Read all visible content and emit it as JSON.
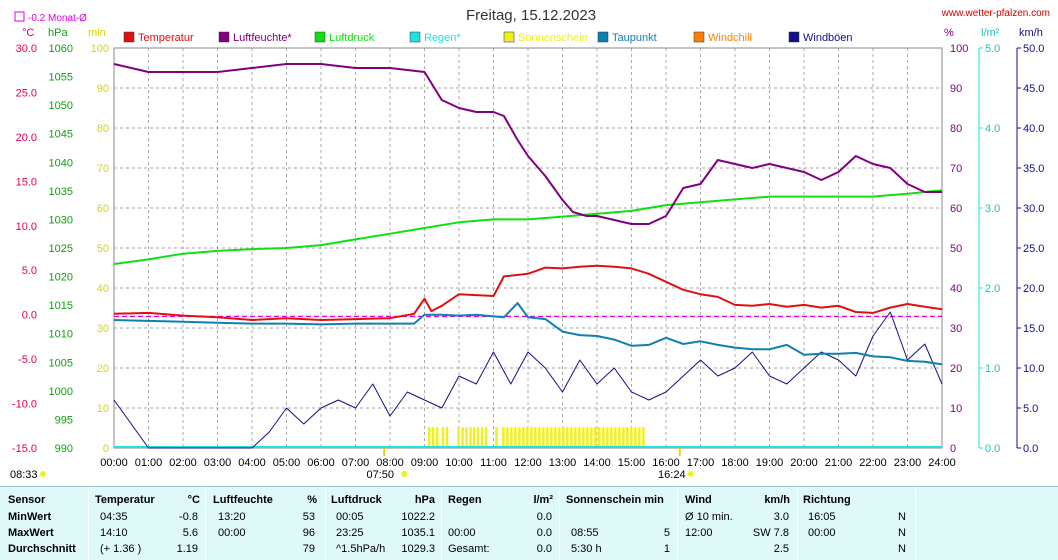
{
  "chart_data": {
    "type": "line",
    "title": "Freitag, 15.12.2023",
    "source": "www.wetter-pfalzen.com",
    "month_mean_label": "-0.2 Monat-Ø",
    "x_ticks": [
      "00:00",
      "01:00",
      "02:00",
      "03:00",
      "04:00",
      "05:00",
      "06:00",
      "07:00",
      "08:00",
      "09:00",
      "10:00",
      "11:00",
      "12:00",
      "13:00",
      "14:00",
      "15:00",
      "16:00",
      "17:00",
      "18:00",
      "19:00",
      "20:00",
      "21:00",
      "22:00",
      "23:00",
      "24:00"
    ],
    "sunrise": "07:50",
    "sunset": "16:24",
    "sunshine_start": "08:33",
    "axes": {
      "temp": {
        "unit": "°C",
        "min": -15,
        "max": 30,
        "ticks": [
          "30.0",
          "25.0",
          "20.0",
          "15.0",
          "10.0",
          "5.0",
          "0.0",
          "-5.0",
          "-10.0",
          "-15.0"
        ]
      },
      "pressure": {
        "unit": "hPa",
        "min": 990,
        "max": 1060,
        "ticks": [
          "1060",
          "1055",
          "1050",
          "1045",
          "1040",
          "1035",
          "1030",
          "1025",
          "1020",
          "1015",
          "1010",
          "1005",
          "1000",
          "995",
          "990"
        ]
      },
      "sun": {
        "unit": "min",
        "ticks": [
          "100",
          "90",
          "80",
          "70",
          "60",
          "50",
          "40",
          "30",
          "20",
          "10",
          "0"
        ]
      },
      "humidity": {
        "unit": "%",
        "ticks": [
          "100",
          "90",
          "80",
          "70",
          "60",
          "50",
          "40",
          "30",
          "20",
          "10",
          "0"
        ]
      },
      "rain": {
        "unit": "l/m²",
        "ticks": [
          "5.0",
          "4.0",
          "3.0",
          "2.0",
          "1.0",
          "0.0"
        ]
      },
      "wind": {
        "unit": "km/h",
        "ticks": [
          "50.0",
          "45.0",
          "40.0",
          "35.0",
          "30.0",
          "25.0",
          "20.0",
          "15.0",
          "10.0",
          "5.0",
          "0.0"
        ]
      }
    },
    "month_mean_temp": -0.2,
    "legend": [
      {
        "name": "Temperatur",
        "color": "#e01010"
      },
      {
        "name": "Luftfeuchte*",
        "color": "#800080"
      },
      {
        "name": "Luftdruck",
        "color": "#10e010"
      },
      {
        "name": "Regen*",
        "color": "#20e0e0"
      },
      {
        "name": "Sonnenschein",
        "color": "#f0f020"
      },
      {
        "name": "Taupunkt",
        "color": "#1080b0"
      },
      {
        "name": "Windchill",
        "color": "#ff8000"
      },
      {
        "name": "Windböen",
        "color": "#10108a"
      }
    ],
    "series": [
      {
        "name": "Temperatur",
        "unit": "°C",
        "color": "#e01010",
        "x": [
          0,
          1,
          2,
          3,
          4,
          5,
          6,
          7,
          8,
          8.7,
          9,
          9.2,
          9.5,
          10,
          10.5,
          11,
          11.3,
          12,
          12.5,
          13,
          13.5,
          14,
          14.5,
          15,
          15.5,
          16,
          16.5,
          17,
          17.5,
          18,
          18.5,
          19,
          19.5,
          20,
          20.5,
          21,
          21.5,
          22,
          22.5,
          23,
          23.5,
          24
        ],
        "values": [
          0.1,
          0.2,
          -0.1,
          -0.3,
          -0.6,
          -0.4,
          -0.6,
          -0.5,
          -0.4,
          0.1,
          1.8,
          0.4,
          1.0,
          2.3,
          2.2,
          2.1,
          4.3,
          4.6,
          5.3,
          5.2,
          5.4,
          5.5,
          5.4,
          5.2,
          4.6,
          3.7,
          2.8,
          2.3,
          2.0,
          1.1,
          1.0,
          1.2,
          0.9,
          1.1,
          0.8,
          1.0,
          0.3,
          0.2,
          0.8,
          1.2,
          0.9,
          0.6
        ]
      },
      {
        "name": "Luftfeuchte*",
        "unit": "%",
        "color": "#800080",
        "x": [
          0,
          0.5,
          1,
          2,
          3,
          4,
          5,
          6,
          7,
          8,
          9,
          9.5,
          10,
          10.5,
          11,
          11.3,
          11.7,
          12,
          12.5,
          13,
          13.3,
          13.7,
          14,
          14.5,
          15,
          15.5,
          16,
          16.5,
          17,
          17.5,
          18,
          18.5,
          19,
          19.5,
          20,
          20.5,
          21,
          21.5,
          22,
          22.5,
          23,
          23.5,
          24
        ],
        "values": [
          96,
          95,
          94,
          94,
          94,
          95,
          96,
          96,
          95,
          95,
          94,
          87,
          85,
          84,
          84,
          83,
          77,
          73,
          68,
          62,
          59,
          58,
          58,
          57,
          56,
          56,
          58,
          65,
          66,
          72,
          71,
          70,
          71,
          70,
          69,
          67,
          69,
          73,
          71,
          70,
          66,
          64,
          64
        ]
      },
      {
        "name": "Luftdruck",
        "unit": "hPa",
        "color": "#10e010",
        "x": [
          0,
          1,
          2,
          3,
          4,
          5,
          6,
          7,
          8,
          9,
          10,
          11,
          12,
          13,
          14,
          15,
          16,
          17,
          18,
          19,
          20,
          21,
          22,
          23,
          24
        ],
        "values": [
          1022.2,
          1023,
          1024,
          1024.5,
          1024.8,
          1025,
          1025.5,
          1026.5,
          1027.5,
          1028.5,
          1029.5,
          1030,
          1030,
          1030.5,
          1031,
          1031.5,
          1032.5,
          1033,
          1033.5,
          1034,
          1034,
          1034,
          1034,
          1034.5,
          1035.1
        ]
      },
      {
        "name": "Taupunkt",
        "unit": "°C",
        "color": "#1080b0",
        "x": [
          0,
          1,
          2,
          3,
          4,
          5,
          6,
          7,
          8,
          8.7,
          9,
          9.5,
          10,
          10.5,
          11,
          11.3,
          11.7,
          12,
          12.5,
          13,
          13.5,
          14,
          14.5,
          15,
          15.5,
          16,
          16.5,
          17,
          17.5,
          18,
          18.5,
          19,
          19.5,
          20,
          20.5,
          21,
          21.5,
          22,
          22.5,
          23,
          23.5,
          24
        ],
        "values": [
          -0.6,
          -0.7,
          -0.8,
          -0.9,
          -1.0,
          -1.0,
          -1.1,
          -1.0,
          -1.0,
          -1.0,
          0.0,
          0.0,
          -0.1,
          0.0,
          -0.2,
          -0.3,
          1.3,
          -0.3,
          -0.5,
          -1.9,
          -2.3,
          -2.4,
          -2.8,
          -3.5,
          -3.4,
          -2.6,
          -3.3,
          -3.0,
          -3.4,
          -3.7,
          -3.9,
          -3.9,
          -3.4,
          -4.5,
          -4.4,
          -4.4,
          -4.3,
          -4.7,
          -4.8,
          -5.2,
          -5.3,
          -5.6
        ]
      },
      {
        "name": "Windböen",
        "unit": "km/h",
        "color": "#10108a",
        "x": [
          0,
          0.5,
          1,
          1.5,
          2,
          2.5,
          3,
          3.5,
          4,
          4.5,
          5,
          5.5,
          6,
          6.5,
          7,
          7.5,
          8,
          8.5,
          9,
          9.5,
          10,
          10.5,
          11,
          11.5,
          12,
          12.5,
          13,
          13.5,
          14,
          14.5,
          15,
          15.5,
          16,
          16.5,
          17,
          17.5,
          18,
          18.5,
          19,
          19.5,
          20,
          20.5,
          21,
          21.5,
          22,
          22.5,
          23,
          23.5,
          24
        ],
        "values": [
          6,
          3,
          0,
          0,
          0,
          0,
          0,
          0,
          0,
          2,
          5,
          3,
          5,
          6,
          5,
          8,
          4,
          7,
          6,
          5,
          9,
          8,
          12,
          8,
          12,
          10,
          7,
          11,
          8,
          10,
          7,
          6,
          7,
          9,
          11,
          9,
          10,
          12,
          9,
          8,
          10,
          12,
          11,
          9,
          14,
          17,
          11,
          13,
          8
        ]
      }
    ],
    "sunshine_bars": [
      {
        "from": 9.1,
        "to": 9.35
      },
      {
        "from": 9.5,
        "to": 9.65
      },
      {
        "from": 9.95,
        "to": 10.3
      },
      {
        "from": 10.4,
        "to": 10.75
      },
      {
        "from": 11.05,
        "to": 11.15
      },
      {
        "from": 11.25,
        "to": 15.35
      }
    ],
    "table": {
      "headers": {
        "sensor": "Sensor",
        "temp": "Temperatur",
        "temp_unit": "°C",
        "hum": "Luftfeuchte",
        "hum_unit": "%",
        "press": "Luftdruck",
        "press_unit": "hPa",
        "rain": "Regen",
        "rain_unit": "l/m²",
        "sun": "Sonnenschein min",
        "wind": "Wind",
        "wind_unit": "km/h",
        "dir": "Richtung"
      },
      "rows": [
        {
          "label": "MinWert",
          "t_time": "04:35",
          "t_val": "-0.8",
          "h_time": "13:20",
          "h_val": "53",
          "p_time": "00:05",
          "p_val": "1022.2",
          "r_time": "",
          "r_val": "0.0",
          "s_time": "",
          "s_val": "",
          "w_time": "Ø 10 min.",
          "w_val": "3.0",
          "d_time": "16:05",
          "d_val": "N"
        },
        {
          "label": "MaxWert",
          "t_time": "14:10",
          "t_val": "5.6",
          "h_time": "00:00",
          "h_val": "96",
          "p_time": "23:25",
          "p_val": "1035.1",
          "r_time": "00:00",
          "r_val": "0.0",
          "s_time": "08:55",
          "s_val": "5",
          "w_time": "12:00",
          "w_val": "SW 7.8",
          "d_time": "00:00",
          "d_val": "N"
        },
        {
          "label": "Durchschnitt",
          "t_time": "(+ 1.36 )",
          "t_val": "1.19",
          "h_time": "",
          "h_val": "79",
          "p_time": "^1.5hPa/h",
          "p_val": "1029.3",
          "r_time": "Gesamt:",
          "r_val": "0.0",
          "s_time": "5:30 h",
          "s_val": "1",
          "w_time": "",
          "w_val": "2.5",
          "d_time": "",
          "d_val": "N"
        }
      ]
    }
  }
}
